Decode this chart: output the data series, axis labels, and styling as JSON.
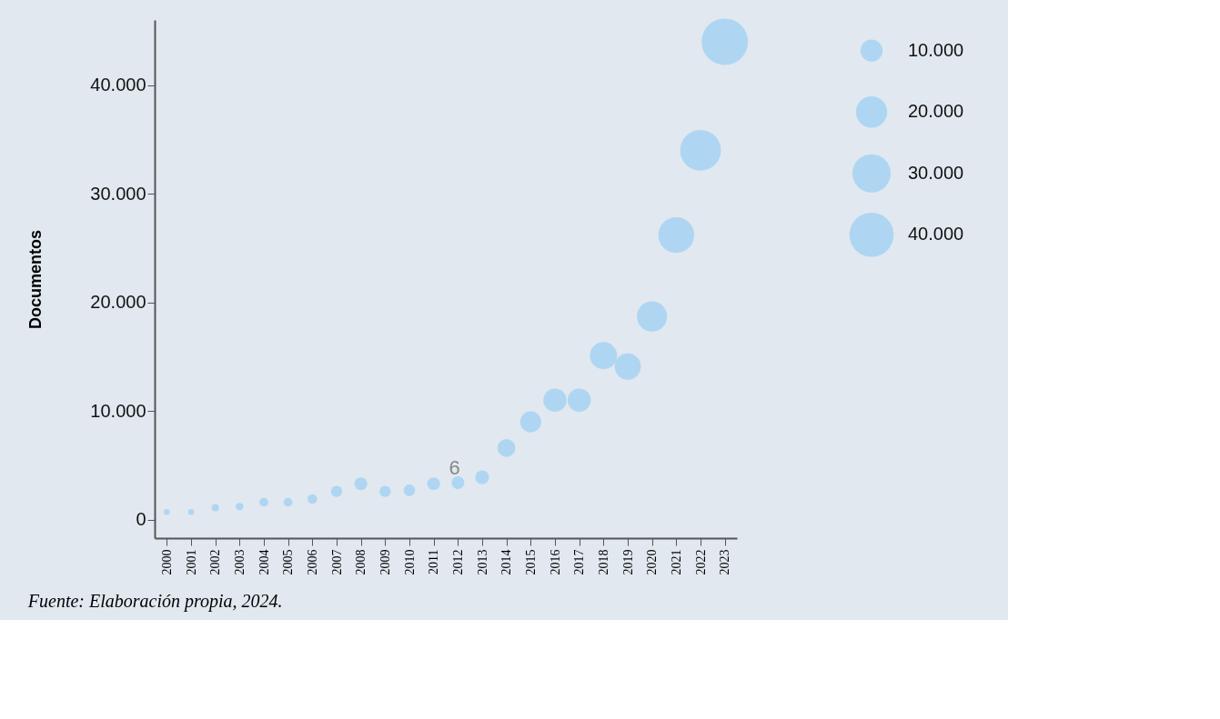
{
  "chart_data": {
    "type": "bubble",
    "ylabel": "Documentos",
    "categories": [
      "2000",
      "2001",
      "2002",
      "2003",
      "2004",
      "2005",
      "2006",
      "2007",
      "2008",
      "2009",
      "2010",
      "2011",
      "2012",
      "2013",
      "2014",
      "2015",
      "2016",
      "2017",
      "2018",
      "2019",
      "2020",
      "2021",
      "2022",
      "2023"
    ],
    "series": [
      {
        "color": "#aed6f3",
        "values": [
          700,
          700,
          1100,
          1200,
          1600,
          1600,
          1900,
          2600,
          3300,
          2600,
          2700,
          3300,
          3400,
          3900,
          6600,
          9000,
          11000,
          11000,
          15100,
          14100,
          18700,
          26200,
          34000,
          44000
        ],
        "sizes": [
          700,
          700,
          1100,
          1200,
          1600,
          1600,
          1900,
          2600,
          3300,
          2600,
          2700,
          3300,
          3400,
          3900,
          6600,
          9000,
          11000,
          11000,
          15100,
          14100,
          18700,
          26200,
          34000,
          44000
        ]
      }
    ],
    "size_legend": [
      {
        "value": 10000,
        "label": "10.000"
      },
      {
        "value": 20000,
        "label": "20.000"
      },
      {
        "value": 30000,
        "label": "30.000"
      },
      {
        "value": 40000,
        "label": "40.000"
      }
    ],
    "ylim": [
      -1700,
      46000
    ],
    "yticks": [
      0,
      {
        "value": 10000,
        "label": "10.000"
      },
      {
        "value": 20000,
        "label": "20.000"
      },
      {
        "value": 30000,
        "label": "30.000"
      },
      {
        "value": 40000,
        "label": "40.000"
      }
    ],
    "grid": false,
    "annotations": [
      "6",
      "Fuente: Elaboración propia, 2024."
    ]
  }
}
